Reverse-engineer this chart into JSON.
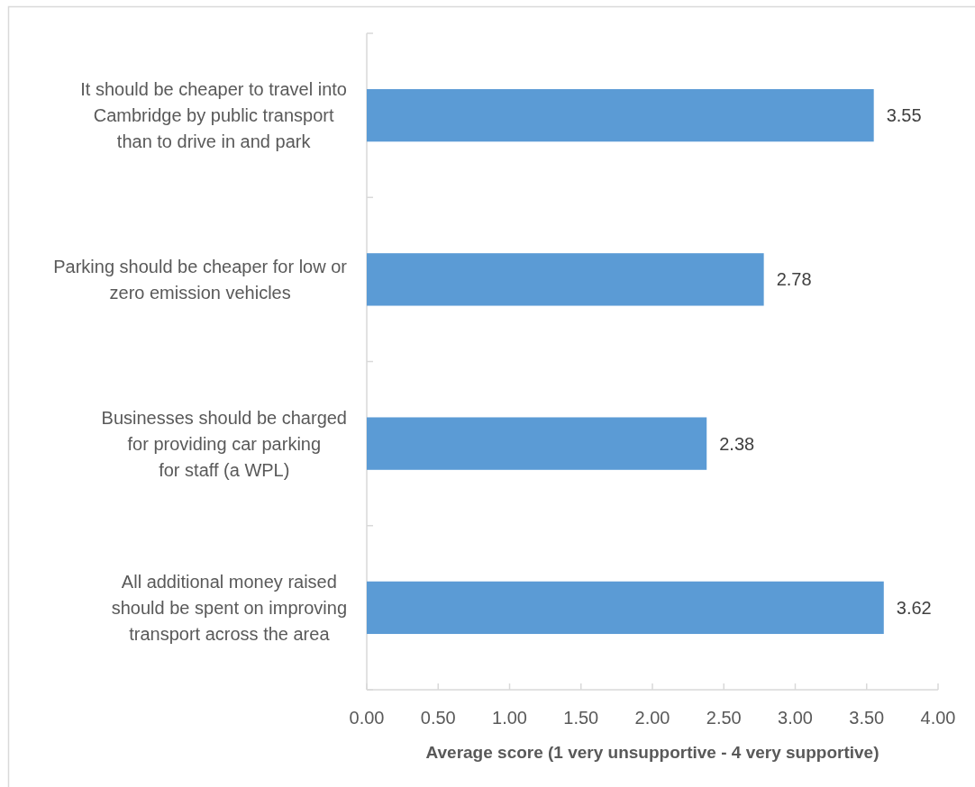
{
  "chart_data": {
    "type": "bar",
    "orientation": "horizontal",
    "xlabel": "Average score (1 very unsupportive - 4 very supportive)",
    "categories": [
      "It should be cheaper to travel into\nCambridge by public transport\nthan to drive in and park",
      "Parking should be cheaper for low or\nzero emission vehicles",
      "Businesses should be charged\nfor providing car parking\nfor staff (a WPL)",
      "All additional money raised\nshould be spent on improving\ntransport across the area"
    ],
    "values": [
      3.55,
      2.78,
      2.38,
      3.62
    ],
    "color": "#5b9bd5",
    "data_labels": true,
    "xlim": [
      0,
      4
    ],
    "xticks": [
      {
        "value": 0,
        "label": "0.00"
      },
      {
        "value": 0.5,
        "label": "0.50"
      },
      {
        "value": 1,
        "label": "1.00"
      },
      {
        "value": 1.5,
        "label": "1.50"
      },
      {
        "value": 2,
        "label": "2.00"
      },
      {
        "value": 2.5,
        "label": "2.50"
      },
      {
        "value": 3,
        "label": "3.00"
      },
      {
        "value": 3.5,
        "label": "3.50"
      },
      {
        "value": 4,
        "label": "4.00"
      }
    ]
  }
}
